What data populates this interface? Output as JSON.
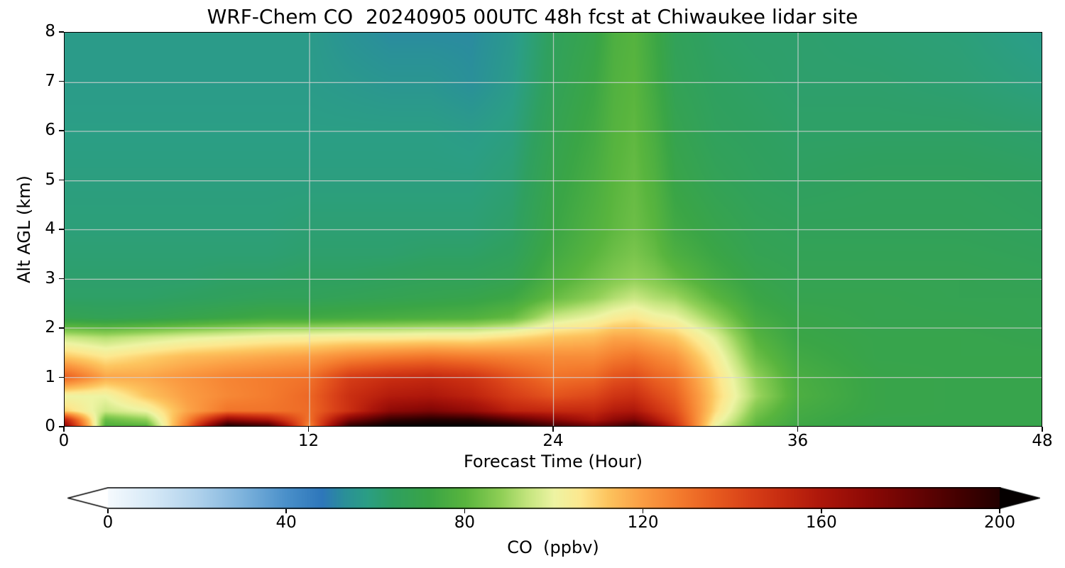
{
  "title": "WRF-Chem CO  20240905 00UTC 48h fcst at Chiwaukee lidar site",
  "chart_data": {
    "type": "heatmap",
    "title": "WRF-Chem CO  20240905 00UTC 48h fcst at Chiwaukee lidar site",
    "xlabel": "Forecast Time (Hour)",
    "ylabel": "Alt AGL (km)",
    "xlim": [
      0,
      48
    ],
    "ylim": [
      0,
      8
    ],
    "xticks": [
      0,
      12,
      24,
      36,
      48
    ],
    "yticks": [
      0,
      1,
      2,
      3,
      4,
      5,
      6,
      7,
      8
    ],
    "grid_x": [
      12,
      24,
      36
    ],
    "grid_y": [
      1,
      2,
      3,
      4,
      5,
      6,
      7
    ],
    "x_hours": [
      0,
      2,
      4,
      6,
      8,
      10,
      12,
      14,
      16,
      18,
      20,
      22,
      24,
      26,
      27,
      28,
      29,
      30,
      32,
      34,
      36,
      40,
      44,
      48
    ],
    "y_km": [
      0,
      0.12,
      0.3,
      0.6,
      1,
      1.4,
      1.8,
      2.2,
      2.6,
      3,
      3.5,
      4,
      5,
      6,
      7,
      8
    ],
    "values_ppbv": [
      [
        170,
        155,
        110,
        100,
        135,
        112,
        95,
        68,
        63,
        62,
        61,
        60,
        59,
        58,
        57,
        57
      ],
      [
        78,
        82,
        95,
        100,
        118,
        106,
        92,
        67,
        63,
        62,
        61,
        60,
        59,
        58,
        57,
        57
      ],
      [
        80,
        88,
        100,
        112,
        118,
        110,
        95,
        68,
        63,
        62,
        61,
        60,
        59,
        58,
        57,
        57
      ],
      [
        130,
        125,
        118,
        120,
        122,
        114,
        98,
        70,
        64,
        62,
        61,
        60,
        59,
        58,
        57,
        57
      ],
      [
        200,
        170,
        130,
        125,
        126,
        116,
        100,
        72,
        65,
        63,
        61,
        60,
        59,
        58,
        57,
        57
      ],
      [
        190,
        160,
        130,
        128,
        128,
        118,
        102,
        74,
        66,
        63,
        61,
        60,
        59,
        58,
        57,
        57
      ],
      [
        125,
        130,
        132,
        133,
        130,
        120,
        103,
        74,
        66,
        64,
        62,
        61,
        59,
        58,
        57,
        57
      ],
      [
        195,
        175,
        150,
        150,
        145,
        125,
        104,
        75,
        67,
        64,
        62,
        61,
        59,
        58,
        56,
        54
      ],
      [
        208,
        195,
        170,
        158,
        150,
        128,
        104,
        76,
        68,
        65,
        62,
        61,
        59,
        58,
        55,
        52
      ],
      [
        210,
        200,
        175,
        160,
        152,
        130,
        105,
        77,
        69,
        66,
        63,
        61,
        59,
        58,
        55,
        52
      ],
      [
        210,
        198,
        168,
        155,
        148,
        128,
        105,
        78,
        70,
        66,
        63,
        61,
        59,
        57,
        53,
        52
      ],
      [
        205,
        185,
        155,
        145,
        138,
        126,
        108,
        82,
        73,
        68,
        65,
        63,
        61,
        59,
        57,
        56
      ],
      [
        190,
        172,
        152,
        138,
        130,
        124,
        112,
        95,
        82,
        77,
        74,
        72,
        70,
        68,
        66,
        65
      ],
      [
        178,
        160,
        152,
        142,
        132,
        124,
        114,
        100,
        88,
        83,
        80,
        78,
        76,
        74,
        72,
        70
      ],
      [
        185,
        170,
        158,
        148,
        138,
        128,
        118,
        104,
        92,
        86,
        83,
        81,
        80,
        79,
        78,
        77
      ],
      [
        195,
        175,
        160,
        150,
        140,
        130,
        118,
        106,
        95,
        88,
        85,
        83,
        82,
        81,
        80,
        79
      ],
      [
        175,
        160,
        150,
        142,
        134,
        126,
        115,
        102,
        92,
        86,
        82,
        80,
        78,
        76,
        74,
        73
      ],
      [
        150,
        145,
        140,
        135,
        130,
        122,
        112,
        100,
        90,
        82,
        77,
        74,
        71,
        69,
        67,
        66
      ],
      [
        100,
        104,
        108,
        110,
        108,
        104,
        98,
        88,
        80,
        75,
        72,
        70,
        67,
        65,
        64,
        63
      ],
      [
        80,
        82,
        85,
        90,
        88,
        83,
        79,
        75,
        72,
        70,
        68,
        67,
        65,
        64,
        63,
        62
      ],
      [
        73,
        74,
        75,
        77,
        76,
        74,
        72,
        71,
        69,
        68,
        67,
        66,
        64,
        63,
        62,
        62
      ],
      [
        70,
        70,
        71,
        71,
        71,
        70,
        70,
        69,
        69,
        68,
        67,
        66,
        65,
        63,
        62,
        61
      ],
      [
        70,
        70,
        70,
        70,
        70,
        70,
        70,
        69,
        68,
        68,
        67,
        66,
        65,
        63,
        61,
        60
      ],
      [
        70,
        70,
        70,
        70,
        70,
        70,
        69,
        68,
        68,
        67,
        66,
        65,
        64,
        62,
        59,
        57
      ]
    ],
    "colorbar": {
      "label": "CO  (ppbv)",
      "ticks": [
        0,
        40,
        80,
        120,
        160,
        200
      ],
      "range": [
        0,
        200
      ],
      "extend": "both"
    },
    "colormap_stops": [
      [
        -12,
        "#ffffff"
      ],
      [
        0,
        "#f5fafe"
      ],
      [
        10,
        "#d6e9f7"
      ],
      [
        20,
        "#b0d2ec"
      ],
      [
        30,
        "#7fb4dd"
      ],
      [
        40,
        "#4a90ca"
      ],
      [
        48,
        "#2e77bb"
      ],
      [
        53,
        "#2a9099"
      ],
      [
        58,
        "#2b9e85"
      ],
      [
        64,
        "#2fa060"
      ],
      [
        72,
        "#3aa546"
      ],
      [
        80,
        "#59b53e"
      ],
      [
        88,
        "#8fcf56"
      ],
      [
        94,
        "#c4e57e"
      ],
      [
        100,
        "#eef4a3"
      ],
      [
        106,
        "#fde88f"
      ],
      [
        112,
        "#fdc55f"
      ],
      [
        120,
        "#fb9d43"
      ],
      [
        128,
        "#f47c2e"
      ],
      [
        136,
        "#e85c20"
      ],
      [
        144,
        "#d84018"
      ],
      [
        152,
        "#c52a10"
      ],
      [
        160,
        "#ad170b"
      ],
      [
        170,
        "#8f0a06"
      ],
      [
        180,
        "#6b0404"
      ],
      [
        190,
        "#470101"
      ],
      [
        200,
        "#230000"
      ],
      [
        210,
        "#050000"
      ]
    ],
    "grid_color": "#d4d4d4",
    "frame_color": "#000000"
  }
}
